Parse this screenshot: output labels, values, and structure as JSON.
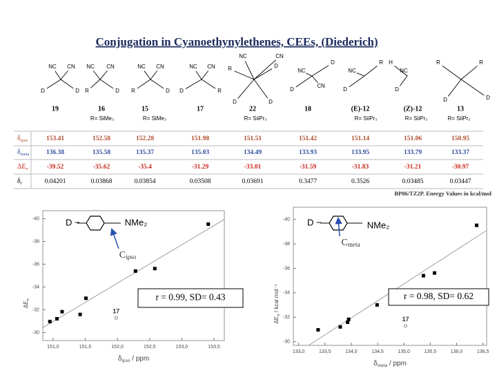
{
  "title": "Conjugation in Cyanoethynylethenes, CEEs, (Diederich)",
  "compounds": [
    {
      "label": "19",
      "atoms": [
        "NC",
        "CN",
        "D",
        "D"
      ]
    },
    {
      "label": "16",
      "atoms": [
        "NC",
        "CN",
        "R",
        "D"
      ],
      "r": "R= SiMe₃"
    },
    {
      "label": "15",
      "atoms": [
        "NC",
        "CN",
        "R",
        "D"
      ],
      "r": "R= SiMe₃"
    },
    {
      "label": "17",
      "atoms": [
        "NC",
        "CN",
        "D",
        "R"
      ]
    },
    {
      "label": "22",
      "atoms": [
        "NC",
        "CN",
        "R",
        "D",
        "D",
        "D"
      ],
      "r": "R= SiiPr₃"
    },
    {
      "label": "18",
      "atoms": [
        "D",
        "NC",
        "CN",
        "D"
      ]
    },
    {
      "label": "(E)-12",
      "atoms": [
        "R",
        "NC",
        "D"
      ],
      "r": "R= SiiPr₃"
    },
    {
      "label": "(Z)-12",
      "atoms": [
        "H",
        "NC",
        "D"
      ],
      "r": "R= SiiPr₃"
    },
    {
      "label": "13",
      "atoms": [
        "R",
        "R",
        "D",
        "D"
      ],
      "r": "R= SiiPr₃"
    }
  ],
  "table": {
    "rows": [
      {
        "label": {
          "symbol": "δ",
          "sub": "ipso"
        },
        "color": "#b04a2a",
        "values": [
          153.41,
          152.58,
          152.28,
          151.98,
          151.51,
          151.42,
          151.14,
          151.06,
          150.95
        ]
      },
      {
        "label": {
          "symbol": "δ",
          "sub": "meta"
        },
        "color": "#2f4f9f",
        "values": [
          136.38,
          135.58,
          135.37,
          135.03,
          134.49,
          133.93,
          133.95,
          133.79,
          133.37
        ]
      },
      {
        "label": {
          "symbol": "ΔE",
          "sub": "π"
        },
        "color": "#c8281e",
        "values": [
          -39.52,
          -35.62,
          -35.4,
          -31.29,
          -33.01,
          -31.59,
          -31.83,
          -31.21,
          -30.97
        ]
      },
      {
        "label": {
          "symbol": "δ",
          "sub": "r"
        },
        "color": "#000000",
        "values": [
          0.04201,
          0.03868,
          0.03854,
          0.03508,
          0.03691,
          0.3477,
          0.3526,
          0.03485,
          0.03447
        ]
      }
    ]
  },
  "footnote": "BP86/TZ2P. Energy Values in kcal/mol",
  "chart_data": [
    {
      "type": "scatter",
      "categories": [
        "19",
        "16",
        "15",
        "17",
        "22",
        "18",
        "(E)-12",
        "(Z)-12",
        "13"
      ],
      "x": [
        153.41,
        152.58,
        152.28,
        151.98,
        151.51,
        151.42,
        151.14,
        151.06,
        150.95
      ],
      "values": [
        -39.52,
        -35.62,
        -35.4,
        -31.29,
        -33.01,
        -31.59,
        -31.83,
        -31.21,
        -30.97
      ],
      "highlight": "17",
      "color": "#000000",
      "xlim": [
        150.84,
        153.66
      ],
      "ylim": [
        -29.3,
        -40.7
      ],
      "xticks": [
        {
          "value": 151,
          "label": "151,0"
        },
        {
          "value": 151.5,
          "label": "151,5"
        },
        {
          "value": 152,
          "label": "152,0"
        },
        {
          "value": 152.5,
          "label": "152,5"
        },
        {
          "value": 153,
          "label": "153,0"
        },
        {
          "value": 153.5,
          "label": "153,5"
        }
      ],
      "yticks": [
        -40,
        -38,
        -36,
        -34,
        -32,
        -30
      ],
      "xlabel": {
        "symbol": "δ",
        "sub": "ipso",
        "rest": " / ppm"
      },
      "ylabel": {
        "symbol": "ΔE",
        "sub": "π",
        "rest": ""
      },
      "fit_text": "r = 0.99, SD= 0.43",
      "inset": {
        "donor": "D −",
        "group": "NMe₂",
        "carbon": {
          "symbol": "C",
          "sub": "ipso"
        }
      }
    },
    {
      "type": "scatter",
      "categories": [
        "19",
        "16",
        "15",
        "17",
        "22",
        "18",
        "(E)-12",
        "(Z)-12",
        "13"
      ],
      "x": [
        136.38,
        135.58,
        135.37,
        135.03,
        134.49,
        133.93,
        133.95,
        133.79,
        133.37
      ],
      "values": [
        -39.52,
        -35.62,
        -35.4,
        -31.29,
        -33.01,
        -31.59,
        -31.83,
        -31.21,
        -30.97
      ],
      "highlight": "17",
      "color": "#000000",
      "xlim": [
        132.9,
        136.57
      ],
      "ylim": [
        -29.7,
        -41
      ],
      "xticks": [
        {
          "value": 133,
          "label": "133,0"
        },
        {
          "value": 133.5,
          "label": "133,5"
        },
        {
          "value": 134,
          "label": "134,0"
        },
        {
          "value": 134.5,
          "label": "134,5"
        },
        {
          "value": 135,
          "label": "135,0"
        },
        {
          "value": 135.5,
          "label": "135,5"
        },
        {
          "value": 136,
          "label": "136,0"
        },
        {
          "value": 136.5,
          "label": "136,5"
        }
      ],
      "yticks": [
        -40,
        -38,
        -36,
        -34,
        -32,
        -30
      ],
      "xlabel": {
        "symbol": "δ",
        "sub": "meta",
        "rest": " / ppm"
      },
      "ylabel": {
        "symbol": "ΔE",
        "sub": "π",
        "rest": " / kcal mol⁻¹"
      },
      "fit_text": "r = 0.98, SD= 0.62",
      "inset": {
        "donor": "D −",
        "group": "NMe₂",
        "carbon": {
          "symbol": "C",
          "sub": "meta"
        }
      }
    }
  ]
}
